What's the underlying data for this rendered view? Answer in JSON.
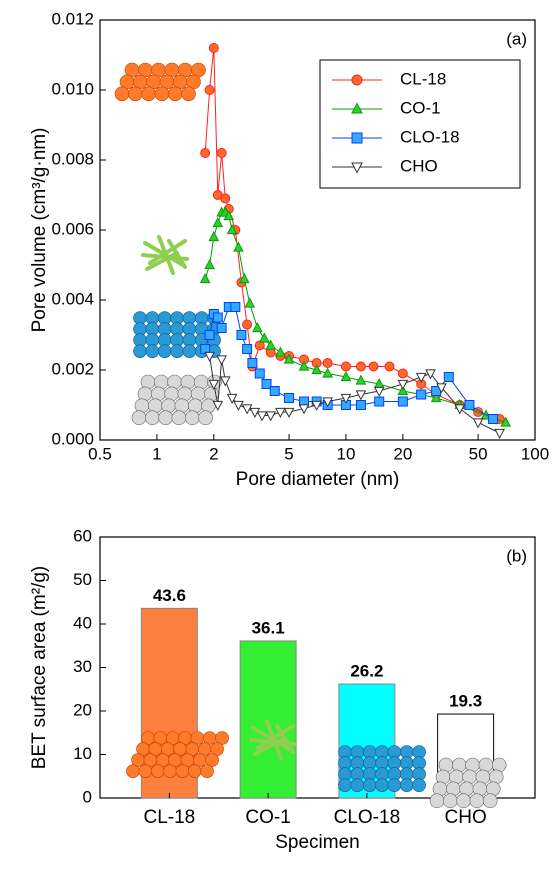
{
  "chart_data": [
    {
      "type": "line",
      "annotation": "(a)",
      "y_label": "Pore volume (cm³/g·nm)",
      "x_label": "Pore diameter (nm)",
      "log_x": true,
      "xlim": [
        0.5,
        100
      ],
      "xticks": [
        0.5,
        1,
        2,
        5,
        10,
        20,
        50,
        100
      ],
      "ylim": [
        0,
        0.012
      ],
      "yticks": [
        {
          "value": 0,
          "label": "0.000"
        },
        {
          "value": 0.002,
          "label": "0.002"
        },
        {
          "value": 0.004,
          "label": "0.004"
        },
        {
          "value": 0.006,
          "label": "0.006"
        },
        {
          "value": 0.008,
          "label": "0.008"
        },
        {
          "value": 0.01,
          "label": "0.010"
        },
        {
          "value": 0.012,
          "label": "0.012"
        }
      ],
      "legend": "upper right",
      "series": [
        {
          "name": "CL-18",
          "marker": "circle",
          "color": "#ff6a2a",
          "line_color": "#ff2020",
          "x": [
            1.8,
            1.9,
            2.0,
            2.1,
            2.2,
            2.3,
            2.4,
            2.6,
            2.8,
            3.0,
            3.2,
            3.5,
            4,
            4.5,
            5,
            6,
            7,
            8,
            10,
            12,
            14,
            17,
            20,
            25,
            30,
            40,
            50,
            65
          ],
          "values": [
            0.0082,
            0.01,
            0.0112,
            0.007,
            0.0082,
            0.0069,
            0.0066,
            0.006,
            0.0045,
            0.0033,
            0.0021,
            0.0027,
            0.0025,
            0.0024,
            0.0024,
            0.0023,
            0.0022,
            0.0022,
            0.0021,
            0.0021,
            0.0021,
            0.0021,
            0.0019,
            0.0016,
            0.0013,
            0.001,
            0.0008,
            0.0006
          ]
        },
        {
          "name": "CO-1",
          "marker": "triangle",
          "color": "#33cc33",
          "line_color": "#00a000",
          "x": [
            1.8,
            1.9,
            2.0,
            2.1,
            2.2,
            2.3,
            2.4,
            2.5,
            2.7,
            2.9,
            3.1,
            3.4,
            3.7,
            4.0,
            4.5,
            5,
            6,
            7,
            8,
            10,
            12,
            15,
            20,
            25,
            30,
            40,
            55,
            70
          ],
          "values": [
            0.0046,
            0.005,
            0.0058,
            0.0062,
            0.0065,
            0.0065,
            0.0064,
            0.006,
            0.0055,
            0.0046,
            0.0039,
            0.0032,
            0.0029,
            0.0027,
            0.0025,
            0.0023,
            0.0021,
            0.002,
            0.0019,
            0.0018,
            0.0017,
            0.0016,
            0.0014,
            0.0013,
            0.0012,
            0.001,
            0.0007,
            0.0005
          ]
        },
        {
          "name": "CLO-18",
          "marker": "square",
          "color": "#33aaff",
          "line_color": "#0040ff",
          "x": [
            1.8,
            1.9,
            2.0,
            2.1,
            2.2,
            2.4,
            2.6,
            2.8,
            3.0,
            3.2,
            3.5,
            3.8,
            4.2,
            5,
            6,
            7,
            8,
            10,
            12,
            15,
            20,
            25,
            30,
            35,
            45,
            60
          ],
          "values": [
            0.0026,
            0.003,
            0.0036,
            0.0035,
            0.0032,
            0.0038,
            0.0038,
            0.003,
            0.0026,
            0.0022,
            0.0019,
            0.0016,
            0.0014,
            0.0012,
            0.0011,
            0.0011,
            0.001,
            0.001,
            0.001,
            0.0011,
            0.0011,
            0.0013,
            0.0014,
            0.0018,
            0.001,
            0.0006
          ]
        },
        {
          "name": "CHO",
          "marker": "triangle-down",
          "color": "#ffffff",
          "line_color": "#333333",
          "x": [
            1.9,
            2.0,
            2.1,
            2.2,
            2.3,
            2.5,
            2.7,
            3.0,
            3.3,
            3.6,
            4.0,
            4.5,
            5,
            6,
            7,
            8,
            10,
            12,
            15,
            20,
            25,
            28,
            32,
            40,
            50,
            65
          ],
          "values": [
            0.0024,
            0.0016,
            0.001,
            0.0023,
            0.0017,
            0.0012,
            0.001,
            0.0009,
            0.0008,
            0.0007,
            0.0007,
            0.0008,
            0.0008,
            0.0009,
            0.001,
            0.0011,
            0.0012,
            0.0013,
            0.0014,
            0.0016,
            0.0018,
            0.0019,
            0.0015,
            0.0009,
            0.0005,
            0.0002
          ]
        }
      ]
    },
    {
      "type": "bar",
      "annotation": "(b)",
      "y_label": "BET surface area (m²/g)",
      "x_label": "Specimen",
      "categories": [
        "CL-18",
        "CO-1",
        "CLO-18",
        "CHO"
      ],
      "values": [
        43.6,
        36.1,
        26.2,
        19.3
      ],
      "colors": [
        "#ff7f3f",
        "#33ee33",
        "#00ffff",
        "#ffffff"
      ],
      "ylim": [
        0,
        60
      ],
      "yticks": [
        0,
        10,
        20,
        30,
        40,
        50,
        60
      ]
    }
  ]
}
